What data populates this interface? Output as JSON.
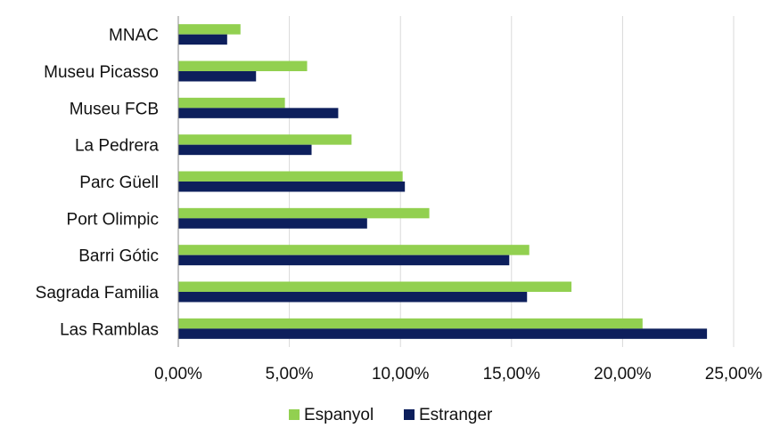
{
  "chart_data": {
    "type": "bar",
    "orientation": "horizontal",
    "categories": [
      "MNAC",
      "Museu Picasso",
      "Museu FCB",
      "La Pedrera",
      "Parc Güell",
      "Port Olimpic",
      "Barri Gótic",
      "Sagrada Familia",
      "Las Ramblas"
    ],
    "series": [
      {
        "name": "Espanyol",
        "color": "#92d050",
        "values": [
          2.8,
          5.8,
          4.8,
          7.8,
          10.1,
          11.3,
          15.8,
          17.7,
          20.9
        ]
      },
      {
        "name": "Estranger",
        "color": "#0d1f5c",
        "values": [
          2.2,
          3.5,
          7.2,
          6.0,
          10.2,
          8.5,
          14.9,
          15.7,
          23.8
        ]
      }
    ],
    "xlim": [
      0,
      25
    ],
    "x_ticks": [
      0,
      5,
      10,
      15,
      20,
      25
    ],
    "x_tick_labels": [
      "0,00%",
      "5,00%",
      "10,00%",
      "15,00%",
      "20,00%",
      "25,00%"
    ],
    "grid": "vertical",
    "legend_position": "bottom"
  }
}
